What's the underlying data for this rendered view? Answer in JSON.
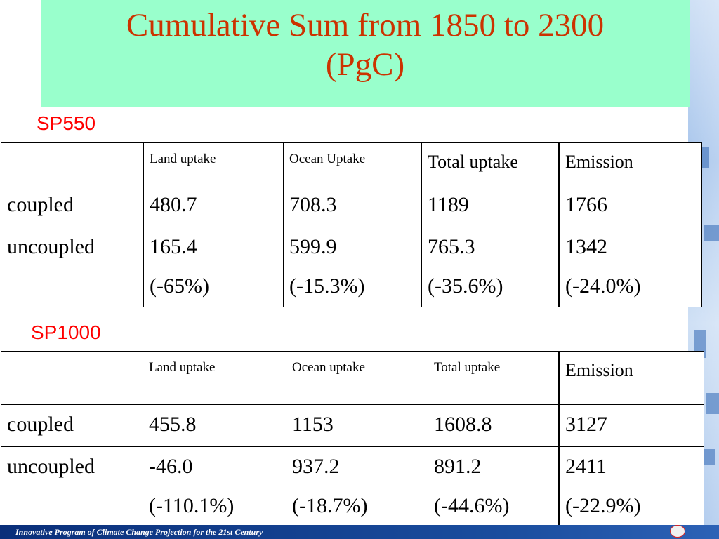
{
  "slide": {
    "title_line1": "Cumulative Sum from 1850 to 2300",
    "title_line2": "(PgC)",
    "footer": "Innovative Program of Climate Change Projection for the 21st Century"
  },
  "sp550": {
    "label": "SP550",
    "headers": [
      "",
      "Land uptake",
      "Ocean Uptake",
      "Total uptake",
      "Emission"
    ],
    "rows": [
      {
        "name": "coupled",
        "values": [
          "480.7",
          "708.3",
          "1189",
          "1766"
        ],
        "changes": [
          "",
          "",
          "",
          ""
        ]
      },
      {
        "name": "uncoupled",
        "values": [
          "165.4",
          "599.9",
          "765.3",
          "1342"
        ],
        "changes": [
          "(-65%)",
          "(-15.3%)",
          "(-35.6%)",
          "(-24.0%)"
        ]
      }
    ]
  },
  "sp1000": {
    "label": "SP1000",
    "headers": [
      "",
      "Land uptake",
      "Ocean uptake",
      "Total uptake",
      "Emission"
    ],
    "rows": [
      {
        "name": "coupled",
        "values": [
          "455.8",
          "1153",
          "1608.8",
          "3127"
        ],
        "changes": [
          "",
          "",
          "",
          ""
        ]
      },
      {
        "name": "uncoupled",
        "values": [
          "-46.0",
          "937.2",
          "891.2",
          "2411"
        ],
        "changes": [
          "(-110.1%)",
          "(-18.7%)",
          "(-44.6%)",
          "(-22.9%)"
        ]
      }
    ]
  },
  "colors": {
    "title_band": "#99ffcc",
    "title_text": "#cc3300",
    "section_label": "#ff0000",
    "footer_bar": "#0a2f7a"
  }
}
